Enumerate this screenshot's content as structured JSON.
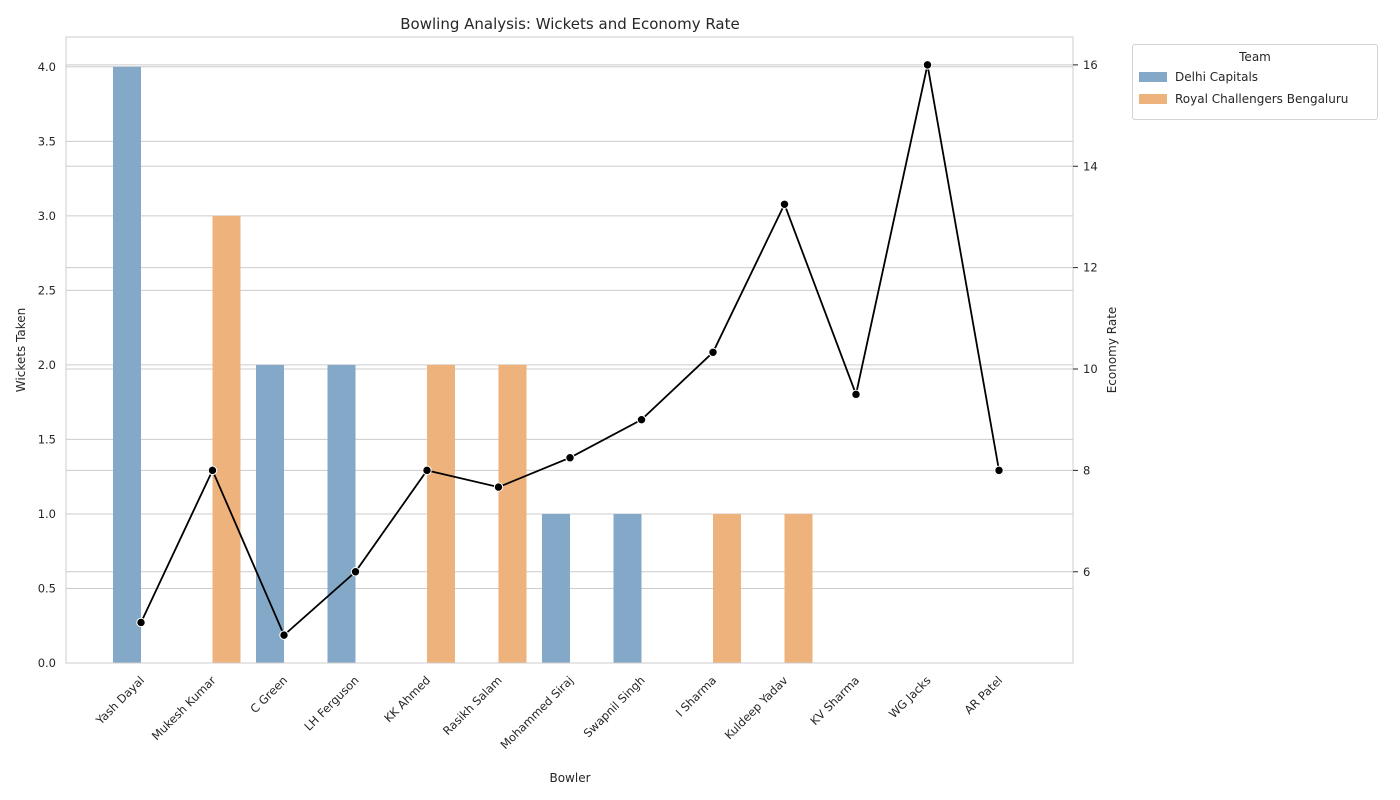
{
  "chart_data": {
    "type": "bar",
    "title": "Bowling Analysis: Wickets and Economy Rate",
    "xlabel": "Bowler",
    "ylabel": "Wickets Taken",
    "y2label": "Economy Rate",
    "ylim": [
      0,
      4.2
    ],
    "y2lim": [
      4.2,
      16.55
    ],
    "yticks": [
      "0.0",
      "0.5",
      "1.0",
      "1.5",
      "2.0",
      "2.5",
      "3.0",
      "3.5",
      "4.0"
    ],
    "y2ticks": [
      "6",
      "8",
      "10",
      "12",
      "14",
      "16"
    ],
    "grid": true,
    "legend_title": "Team",
    "legend_position": "outside top-right",
    "categories": [
      "Yash Dayal",
      "Mukesh Kumar",
      "C Green",
      "LH Ferguson",
      "KK Ahmed",
      "Rasikh Salam",
      "Mohammed Siraj",
      "Swapnil Singh",
      "I Sharma",
      "Kuldeep Yadav",
      "KV Sharma",
      "WG Jacks",
      "AR Patel"
    ],
    "series": [
      {
        "name": "Delhi Capitals",
        "color": "#84a9c8",
        "values": [
          4,
          null,
          2,
          2,
          null,
          null,
          1,
          1,
          null,
          null,
          null,
          null,
          null
        ]
      },
      {
        "name": "Royal Challengers Bengaluru",
        "color": "#eeb27d",
        "values": [
          null,
          3,
          null,
          null,
          2,
          2,
          null,
          null,
          1,
          1,
          null,
          null,
          null
        ]
      }
    ],
    "line_series": {
      "color": "#000000",
      "values": [
        5.0,
        8.0,
        4.75,
        6.0,
        8.0,
        7.67,
        8.25,
        9.0,
        10.33,
        13.25,
        9.5,
        16.0,
        8.0
      ]
    }
  }
}
